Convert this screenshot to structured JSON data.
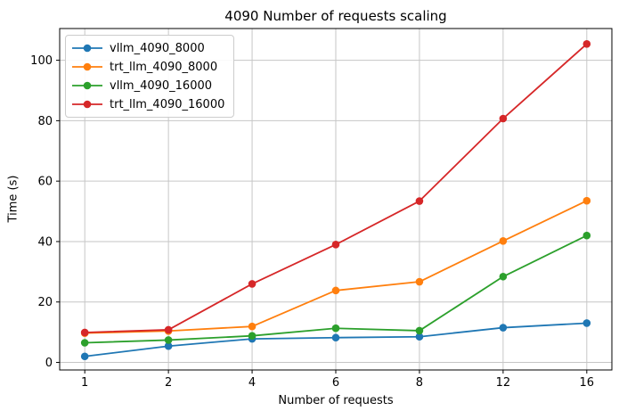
{
  "chart_data": {
    "type": "line",
    "title": "4090 Number of requests scaling",
    "xlabel": "Number of requests",
    "ylabel": "Time (s)",
    "x_tick_labels": [
      "1",
      "2",
      "4",
      "6",
      "8",
      "12",
      "16"
    ],
    "x_spacing": "categorical-equal",
    "xlim_index": [
      -0.3,
      6.3
    ],
    "y_ticks": [
      0,
      20,
      40,
      60,
      80,
      100
    ],
    "ylim": [
      -2.5,
      110.5
    ],
    "grid": true,
    "legend_position": "upper-left",
    "axes_style": {
      "spine_color": "#000000",
      "grid_color": "#c6c6c6",
      "tick_color": "#000000"
    },
    "series": [
      {
        "name": "vllm_4090_8000",
        "color": "#1f77b4",
        "values": [
          2.0,
          5.4,
          7.8,
          8.2,
          8.5,
          11.5,
          13.0
        ]
      },
      {
        "name": "trt_llm_4090_8000",
        "color": "#ff7f0e",
        "values": [
          9.7,
          10.4,
          11.9,
          23.8,
          26.7,
          40.2,
          53.5
        ]
      },
      {
        "name": "vllm_4090_16000",
        "color": "#2ca02c",
        "values": [
          6.5,
          7.4,
          8.8,
          11.3,
          10.5,
          28.4,
          42.0
        ]
      },
      {
        "name": "trt_llm_4090_16000",
        "color": "#d62728",
        "values": [
          9.9,
          10.8,
          26.0,
          39.0,
          53.4,
          80.7,
          105.4
        ]
      }
    ]
  }
}
